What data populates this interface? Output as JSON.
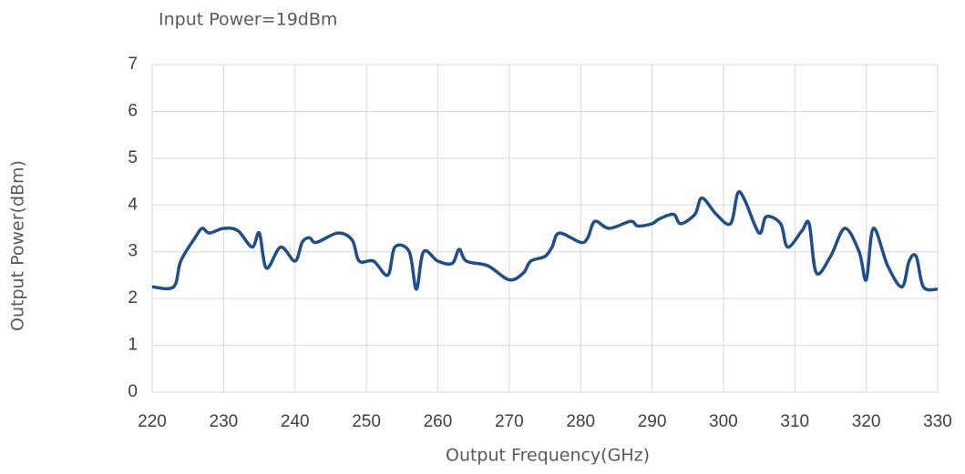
{
  "chart_data": {
    "type": "line",
    "title": "Input Power=19dBm",
    "x_label": "Output Frequency(GHz)",
    "y_label": "Output Power(dBm)",
    "color": "#1f4e8c",
    "grid": true,
    "xlim": [
      220,
      330
    ],
    "xticks": [
      220,
      230,
      240,
      250,
      260,
      270,
      280,
      290,
      300,
      310,
      320,
      330
    ],
    "ylim": [
      0,
      7
    ],
    "yticks": [
      0,
      1,
      2,
      3,
      4,
      5,
      6,
      7
    ],
    "x": [
      220,
      223,
      224,
      226,
      227,
      228,
      230,
      232,
      234,
      235,
      236,
      238,
      240,
      241,
      242,
      243,
      246,
      248,
      249,
      251,
      253,
      254,
      256,
      257,
      258,
      260,
      262,
      263,
      264,
      267,
      270,
      272,
      273,
      275,
      276,
      277,
      280,
      281,
      282,
      284,
      287,
      288,
      290,
      291,
      293,
      294,
      296,
      297,
      299,
      301,
      302,
      303,
      305,
      306,
      308,
      309,
      311,
      312,
      313,
      315,
      317,
      319,
      320,
      321,
      323,
      325,
      326,
      327,
      328,
      330
    ],
    "values": [
      2.25,
      2.25,
      2.8,
      3.3,
      3.5,
      3.4,
      3.5,
      3.45,
      3.1,
      3.4,
      2.65,
      3.1,
      2.8,
      3.2,
      3.3,
      3.2,
      3.4,
      3.25,
      2.8,
      2.8,
      2.5,
      3.1,
      3.0,
      2.2,
      3.0,
      2.8,
      2.75,
      3.05,
      2.8,
      2.7,
      2.4,
      2.55,
      2.8,
      2.9,
      3.1,
      3.4,
      3.2,
      3.3,
      3.65,
      3.5,
      3.65,
      3.55,
      3.6,
      3.7,
      3.8,
      3.6,
      3.8,
      4.15,
      3.8,
      3.6,
      4.25,
      4.1,
      3.4,
      3.75,
      3.6,
      3.1,
      3.45,
      3.6,
      2.55,
      2.9,
      3.5,
      3.0,
      2.4,
      3.5,
      2.7,
      2.25,
      2.8,
      2.9,
      2.25,
      2.2
    ]
  }
}
